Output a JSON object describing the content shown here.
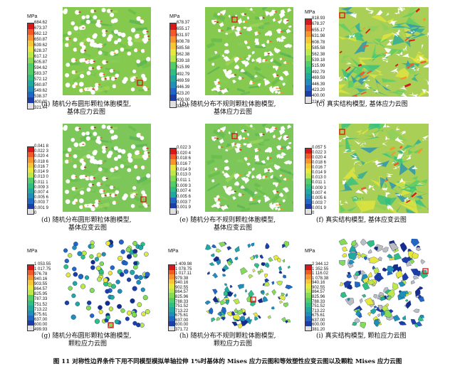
{
  "figure": {
    "caption": "图 11  对称性边界条件下用不同模型模拟单轴拉伸 1%时基体的 Mises 应力云图和等效塑性应变云图以及颗粒 Mises 应力云图"
  },
  "colormap": [
    "#d7191c",
    "#f25a2c",
    "#f7942d",
    "#f6c637",
    "#e8e73c",
    "#bde84a",
    "#86db55",
    "#53cd69",
    "#2fbf83",
    "#21a9a0",
    "#1f8fba",
    "#2266c6",
    "#1d3ea8",
    "#152c8c"
  ],
  "panels": [
    {
      "caption": "(a) 随机分布圆形颗粒体胞模型,\n基体应力云图",
      "legend": {
        "unit": "MPa",
        "ticks": [
          "684.62",
          "673.37",
          "662.12",
          "650.87",
          "639.62",
          "628.37",
          "617.12",
          "605.87",
          "594.62",
          "583.37",
          "572.12",
          "560.87",
          "549.62",
          "538.37",
          "400.00",
          "321.44"
        ]
      }
    },
    {
      "caption": "(b) 随机分布不规则颗粒体胞模型,\n基体应力云图",
      "legend": {
        "unit": "MPa",
        "ticks": [
          "678.37",
          "655.17",
          "631.97",
          "608.78",
          "585.58",
          "562.38",
          "539.18",
          "515.99",
          "492.79",
          "469.59",
          "446.39",
          "423.20",
          "400.00",
          "320.07"
        ]
      }
    },
    {
      "caption": "(c) 真实结构模型, 基体应力云图",
      "legend": {
        "unit": "MPa",
        "ticks": [
          "818.93",
          "678.37",
          "655.17",
          "631.98",
          "608.78",
          "585.58",
          "562.38",
          "539.18",
          "515.99",
          "492.79",
          "469.59",
          "446.39",
          "423.20",
          "400.00",
          "224.87"
        ]
      }
    },
    {
      "caption": "(d) 随机分布圆形颗粒体胞模型,\n基体应变云图",
      "legend": {
        "unit": "",
        "ticks": [
          "0.041 8",
          "0.022 3",
          "0.020 4",
          "0.018 6",
          "0.016 7",
          "0.014 9",
          "0.013 0",
          "0.011 1",
          "0.009 3",
          "0.007 4",
          "0.005 6",
          "0.003 7",
          "0.001 9",
          "0"
        ]
      }
    },
    {
      "caption": "(e) 随机分布不规则颗粒体胞模型,\n基体应变云图",
      "legend": {
        "unit": "",
        "ticks": [
          "0.022 3",
          "0.020 4",
          "0.018 6",
          "0.016 7",
          "0.014 9",
          "0.013 0",
          "0.011 1",
          "0.009 3",
          "0.007 4",
          "0.005 6",
          "0.003 7",
          "0.001 9",
          "0"
        ]
      }
    },
    {
      "caption": "(f) 真实结构模型, 基体应变云图",
      "legend": {
        "unit": "",
        "ticks": [
          "0.057 5",
          "0.022 3",
          "0.020 4",
          "0.018 6",
          "0.016 7",
          "0.014 9",
          "0.013 0",
          "0.011 1",
          "0.009 3",
          "0.007 4",
          "0.005 6",
          "0.003 7",
          "0.001 9",
          "0"
        ]
      }
    },
    {
      "caption": "(g) 随机分布圆形颗粒体胞模型,\n颗粒应力云图",
      "legend": {
        "unit": "MPa",
        "ticks": [
          "1 053.55",
          "1 017.75",
          "976.78",
          "940.16",
          "903.55",
          "864.57",
          "825.95",
          "787.33",
          "751.52",
          "713.22",
          "675.61",
          "637.00",
          "600.00",
          "499.93"
        ]
      }
    },
    {
      "caption": "(h) 随机分布不规则颗粒体胞模型,\n颗粒应力云图",
      "legend": {
        "unit": "MPa",
        "ticks": [
          "1 409.98",
          "1 078.75",
          "1 017.11",
          "979.38",
          "940.16",
          "902.55",
          "864.57",
          "825.96",
          "788.33",
          "751.52",
          "713.22",
          "675.61",
          "637.00",
          "600.00",
          "371.72"
        ]
      }
    },
    {
      "caption": "(i) 真实结构模型, 颗粒应力云图",
      "legend": {
        "unit": "MPa",
        "ticks": [
          "2 344.12",
          "1 352.55",
          "1 116.02",
          "1 078.38",
          "940.16",
          "902.55",
          "864.57",
          "825.96",
          "788.33",
          "751.52",
          "713.22",
          "675.61",
          "637.00",
          "600.00",
          "381.20"
        ]
      }
    }
  ]
}
